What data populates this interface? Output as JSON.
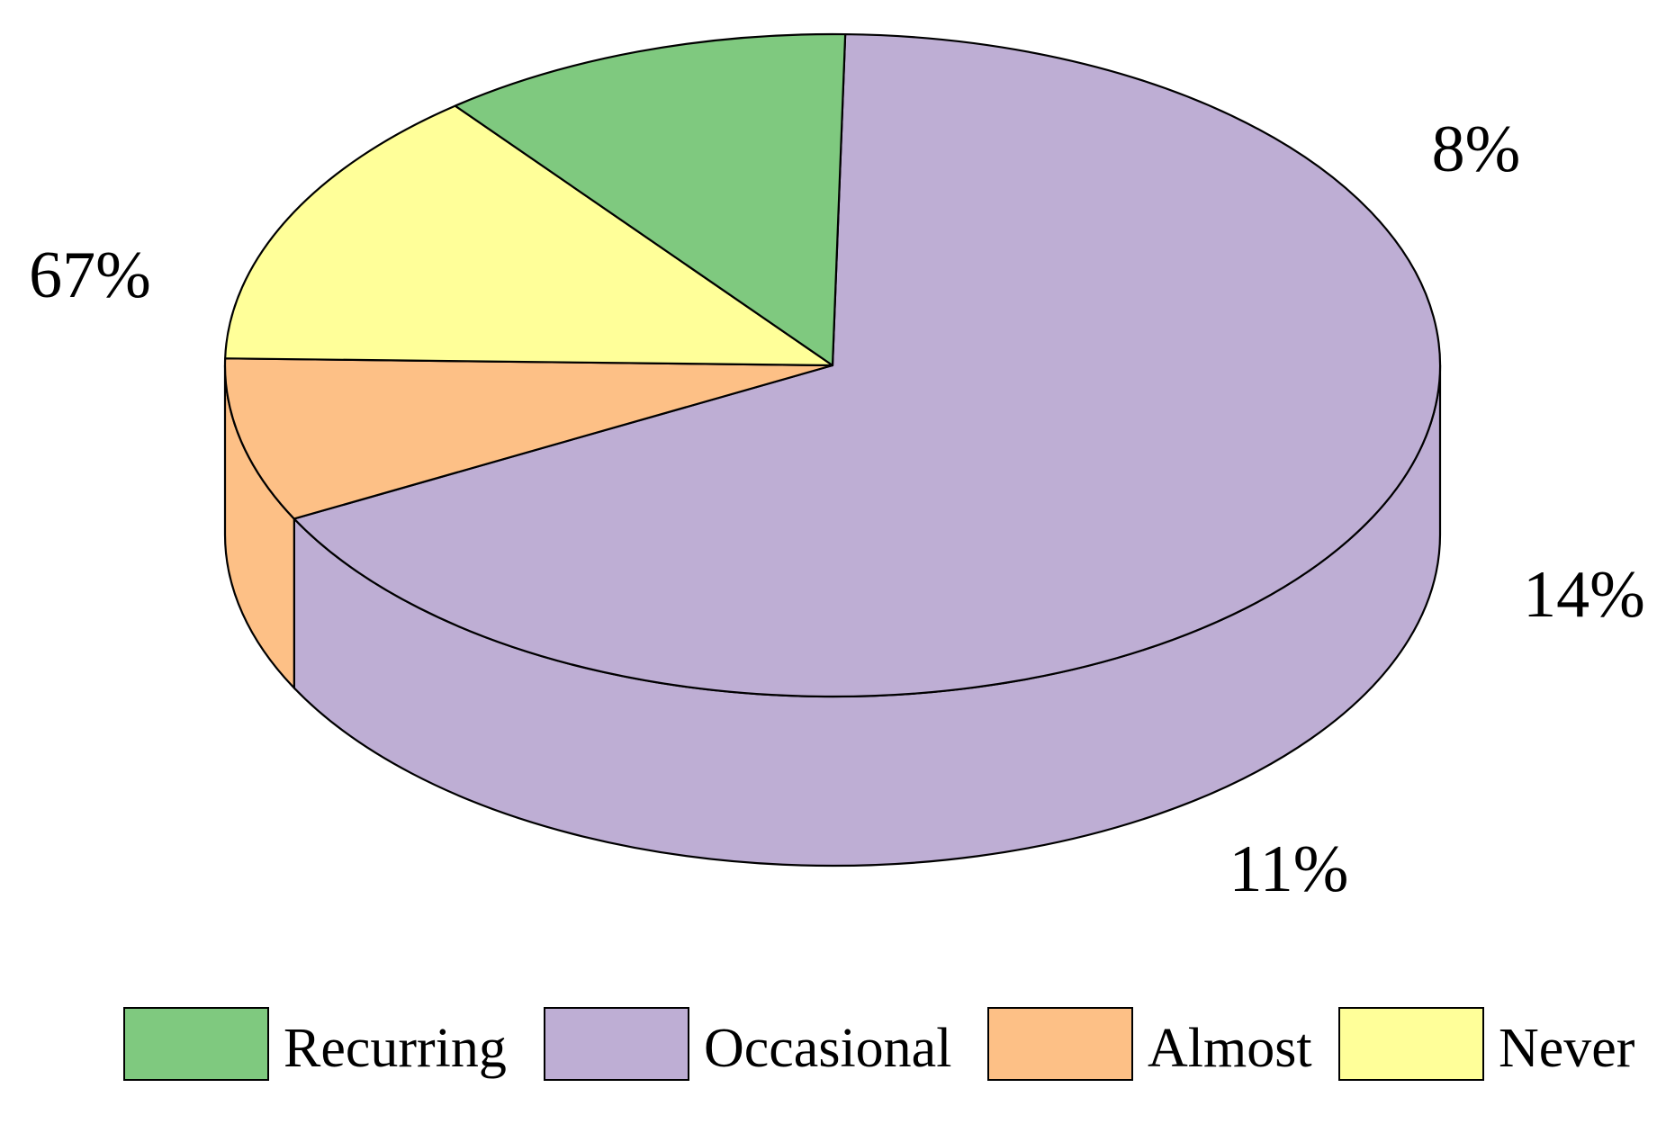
{
  "chart_data": {
    "type": "pie",
    "title": "",
    "style": "3d",
    "legend_placement": "bottom",
    "slices": [
      {
        "name": "Recurring",
        "value": 11,
        "label": "11%",
        "color": "#7fc97f"
      },
      {
        "name": "Occasional",
        "value": 67,
        "label": "67%",
        "color": "#beaed4"
      },
      {
        "name": "Almost",
        "value": 8,
        "label": "8%",
        "color": "#fdc086"
      },
      {
        "name": "Never",
        "value": 14,
        "label": "14%",
        "color": "#ffff99"
      }
    ]
  }
}
